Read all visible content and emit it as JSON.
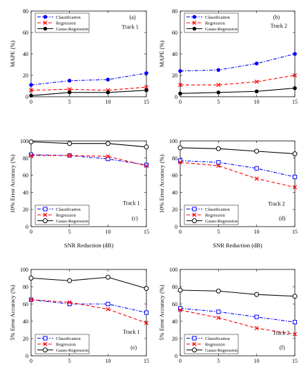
{
  "chart_data": [
    {
      "type": "line",
      "panel": "a",
      "panel_label": "(a)",
      "track_label": "Track 1",
      "xlabel": "",
      "ylabel": "MAPE (%)",
      "x": [
        0,
        5,
        10,
        15
      ],
      "xlim": [
        0,
        15
      ],
      "ylim": [
        0,
        80
      ],
      "xticks": [
        "0",
        "5",
        "10",
        "15"
      ],
      "yticks": [
        "0",
        "20",
        "40",
        "60",
        "80"
      ],
      "grid": false,
      "legend_position": "top-left",
      "series": [
        {
          "name": "Classification",
          "values": [
            11,
            15,
            16,
            22
          ],
          "color": "#0000ff",
          "marker": "filled-circle",
          "dash": "dash-dot"
        },
        {
          "name": "Regression",
          "values": [
            6,
            7,
            6,
            9
          ],
          "color": "#ff0000",
          "marker": "x",
          "dash": "dash"
        },
        {
          "name": "Gauss-Regression",
          "values": [
            1,
            4,
            4,
            6
          ],
          "color": "#000000",
          "marker": "filled-circle",
          "dash": "solid"
        }
      ]
    },
    {
      "type": "line",
      "panel": "b",
      "panel_label": "(b)",
      "track_label": "Track 2",
      "xlabel": "",
      "ylabel": "MAPE (%)",
      "x": [
        0,
        5,
        10,
        15
      ],
      "xlim": [
        0,
        15
      ],
      "ylim": [
        0,
        80
      ],
      "xticks": [
        "0",
        "5",
        "10",
        "15"
      ],
      "yticks": [
        "0",
        "20",
        "40",
        "60",
        "80"
      ],
      "grid": false,
      "legend_position": "top-left",
      "series": [
        {
          "name": "Classification",
          "values": [
            24,
            25,
            31,
            40
          ],
          "color": "#0000ff",
          "marker": "filled-circle",
          "dash": "dash-dot"
        },
        {
          "name": "Regression",
          "values": [
            11,
            11,
            14,
            20
          ],
          "color": "#ff0000",
          "marker": "x",
          "dash": "dash"
        },
        {
          "name": "Gauss-Regression",
          "values": [
            3,
            4,
            5,
            8
          ],
          "color": "#000000",
          "marker": "filled-circle",
          "dash": "solid"
        }
      ]
    },
    {
      "type": "line",
      "panel": "c",
      "panel_label": "(c)",
      "track_label": "Track 1",
      "xlabel": "SNR Reduction (dB)",
      "ylabel": "10% Error Accuracy (%)",
      "x": [
        0,
        5,
        10,
        15
      ],
      "xlim": [
        0,
        15
      ],
      "ylim": [
        0,
        100
      ],
      "xticks": [
        "0",
        "5",
        "10",
        "15"
      ],
      "yticks": [
        "0",
        "20",
        "40",
        "60",
        "80",
        "100"
      ],
      "grid": false,
      "legend_position": "bottom-left",
      "series": [
        {
          "name": "Classification",
          "values": [
            84,
            83,
            79,
            72
          ],
          "color": "#0000ff",
          "marker": "open-square",
          "dash": "dash-dot"
        },
        {
          "name": "Regression",
          "values": [
            83,
            83,
            82,
            71
          ],
          "color": "#ff0000",
          "marker": "x",
          "dash": "dash"
        },
        {
          "name": "Gauss-Regression",
          "values": [
            99,
            97,
            97,
            93
          ],
          "color": "#000000",
          "marker": "open-circle",
          "dash": "solid"
        }
      ]
    },
    {
      "type": "line",
      "panel": "d",
      "panel_label": "(d)",
      "track_label": "Track 2",
      "xlabel": "SNR Reduction (dB)",
      "ylabel": "10% Error Accuracy (%)",
      "x": [
        0,
        5,
        10,
        15
      ],
      "xlim": [
        0,
        15
      ],
      "ylim": [
        0,
        100
      ],
      "xticks": [
        "0",
        "5",
        "10",
        "15"
      ],
      "yticks": [
        "0",
        "20",
        "40",
        "60",
        "80",
        "100"
      ],
      "grid": false,
      "legend_position": "bottom-left",
      "series": [
        {
          "name": "Classification",
          "values": [
            77,
            75,
            68,
            58
          ],
          "color": "#0000ff",
          "marker": "open-square",
          "dash": "dash-dot"
        },
        {
          "name": "Regression",
          "values": [
            75,
            71,
            56,
            46
          ],
          "color": "#ff0000",
          "marker": "x",
          "dash": "dash"
        },
        {
          "name": "Gauss-Regression",
          "values": [
            92,
            91,
            88,
            85
          ],
          "color": "#000000",
          "marker": "open-circle",
          "dash": "solid"
        }
      ]
    },
    {
      "type": "line",
      "panel": "e",
      "panel_label": "(e)",
      "track_label": "Track 1",
      "xlabel": "",
      "ylabel": "5% Error Accuracy (%)",
      "x": [
        0,
        5,
        10,
        15
      ],
      "xlim": [
        0,
        15
      ],
      "ylim": [
        0,
        100
      ],
      "xticks": [
        "0",
        "5",
        "10",
        "15"
      ],
      "yticks": [
        "0",
        "20",
        "40",
        "60",
        "80",
        "100"
      ],
      "grid": false,
      "legend_position": "bottom-left",
      "series": [
        {
          "name": "Classification",
          "values": [
            65,
            60,
            60,
            50
          ],
          "color": "#0000ff",
          "marker": "open-square",
          "dash": "dash-dot"
        },
        {
          "name": "Regression",
          "values": [
            65,
            62,
            54,
            38
          ],
          "color": "#ff0000",
          "marker": "x",
          "dash": "dash"
        },
        {
          "name": "Gauss-Regression",
          "values": [
            90,
            87,
            91,
            78
          ],
          "color": "#000000",
          "marker": "open-circle",
          "dash": "solid"
        }
      ]
    },
    {
      "type": "line",
      "panel": "f",
      "panel_label": "(f)",
      "track_label": "Track 2",
      "xlabel": "",
      "ylabel": "5% Error Accuracy (%)",
      "x": [
        0,
        5,
        10,
        15
      ],
      "xlim": [
        0,
        15
      ],
      "ylim": [
        0,
        100
      ],
      "xticks": [
        "0",
        "5",
        "10",
        "15"
      ],
      "yticks": [
        "0",
        "20",
        "40",
        "60",
        "80",
        "100"
      ],
      "grid": false,
      "legend_position": "bottom-left",
      "series": [
        {
          "name": "Classification",
          "values": [
            55,
            51,
            45,
            39
          ],
          "color": "#0000ff",
          "marker": "open-square",
          "dash": "dash-dot"
        },
        {
          "name": "Regression",
          "values": [
            53,
            44,
            32,
            25
          ],
          "color": "#ff0000",
          "marker": "x",
          "dash": "dash"
        },
        {
          "name": "Gauss-Regression",
          "values": [
            76,
            75,
            71,
            69
          ],
          "color": "#000000",
          "marker": "open-circle",
          "dash": "solid"
        }
      ]
    }
  ]
}
